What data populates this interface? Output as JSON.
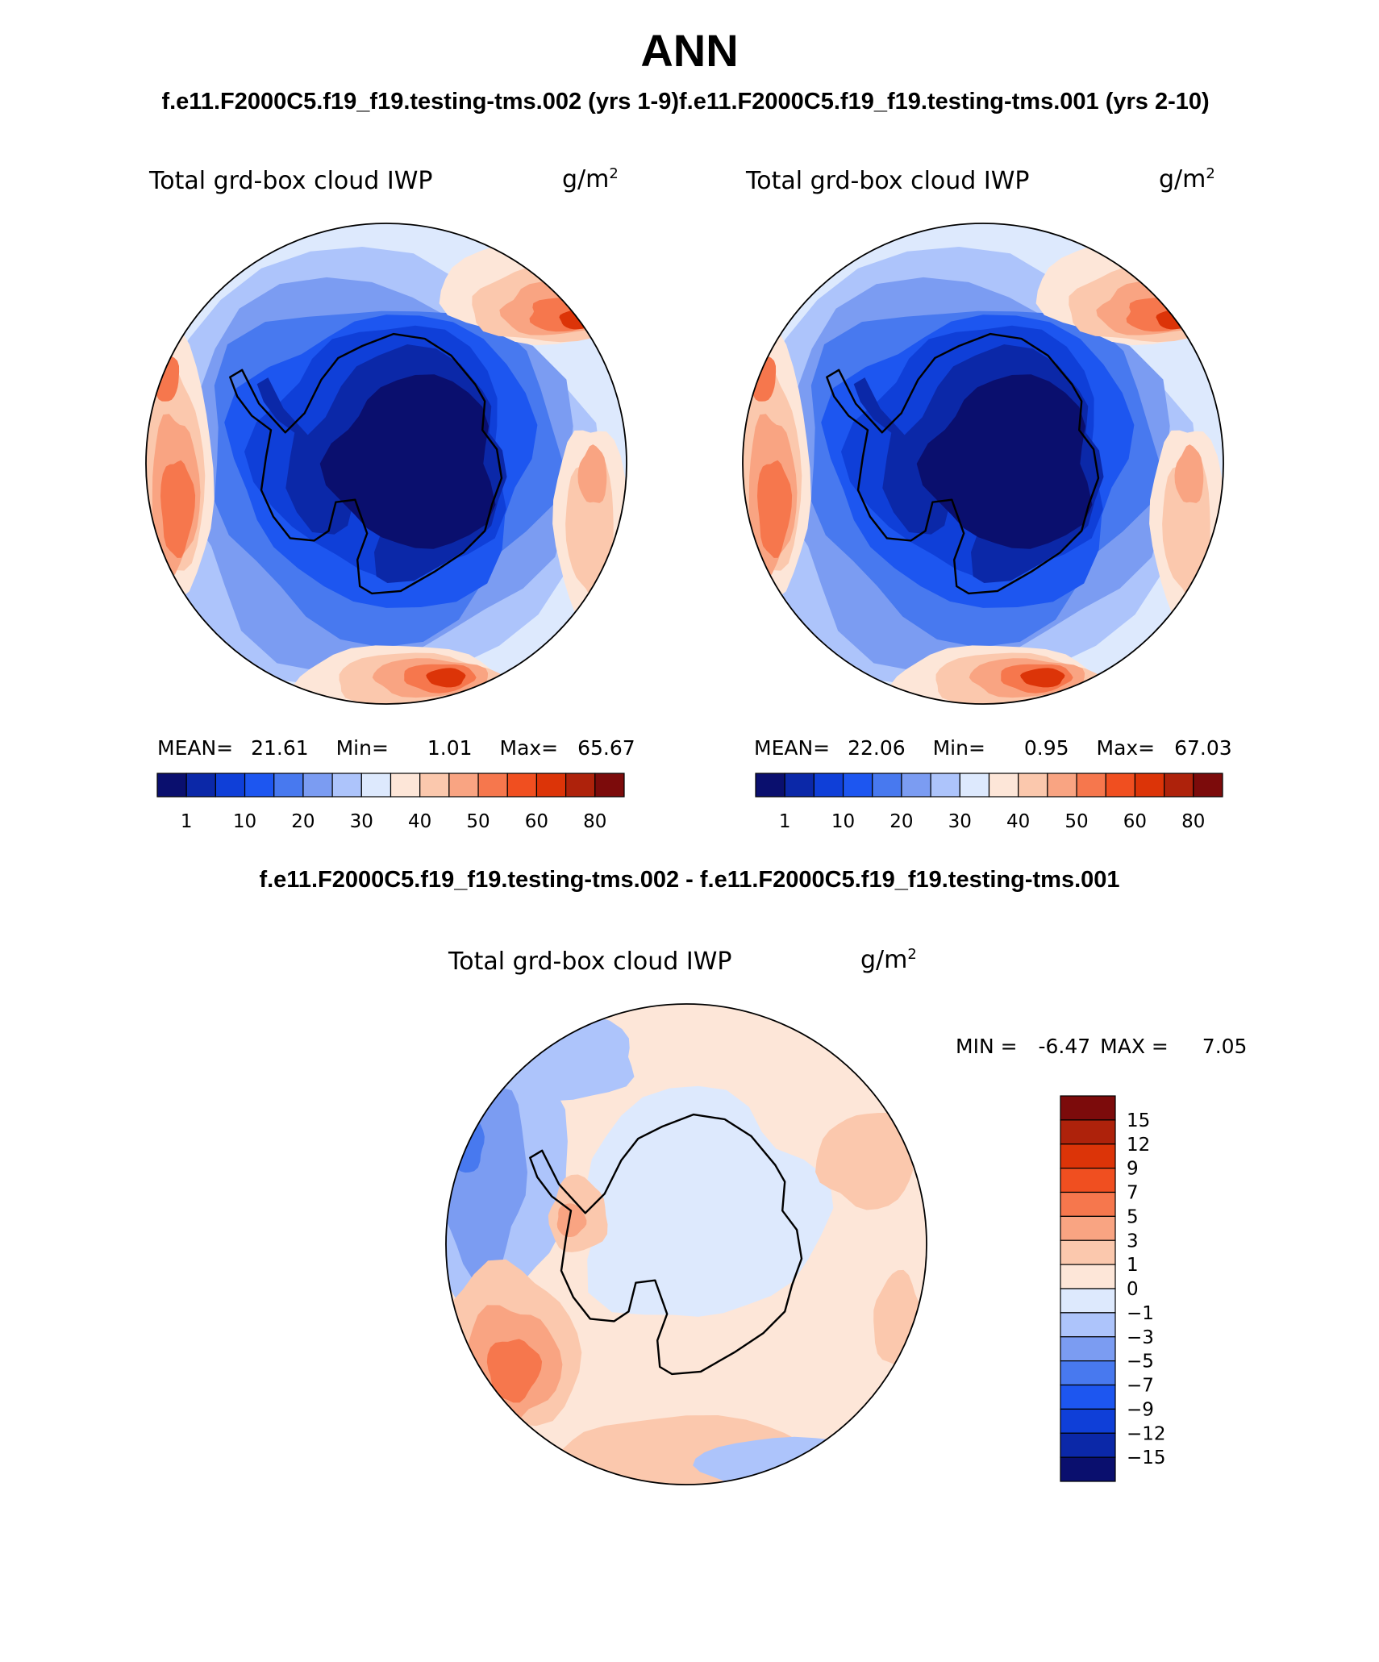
{
  "page": {
    "title": "ANN",
    "case_left_title": "f.e11.F2000C5.f19_f19.testing-tms.002 (yrs 1-9)",
    "case_right_title": "f.e11.F2000C5.f19_f19.testing-tms.001 (yrs 2-10)",
    "diff_title": "f.e11.F2000C5.f19_f19.testing-tms.002 - f.e11.F2000C5.f19_f19.testing-tms.001"
  },
  "colors": {
    "background": "#ffffff",
    "coastline": "#000000",
    "ocean_base_blue": "#a8c4ff",
    "ocean_base_red": "#f6a27e"
  },
  "chart_data": [
    {
      "type": "heatmap",
      "projection": "south-polar-stereographic",
      "variable": "Total grd-box cloud IWP",
      "units": "g/m²",
      "units_base": "g/m",
      "units_exp": "2",
      "stats": {
        "mean_label": "MEAN=",
        "mean": "21.61",
        "min_label": "Min=",
        "min": "1.01",
        "max_label": "Max=",
        "max": "65.67"
      },
      "colorbar": {
        "orientation": "horizontal",
        "levels": [
          "1",
          "10",
          "20",
          "30",
          "40",
          "50",
          "60",
          "80"
        ],
        "colors": [
          "#0a0f6e",
          "#0b28a8",
          "#0f3fd8",
          "#1d56f0",
          "#4879ef",
          "#7b9cf2",
          "#adc4fb",
          "#dde9fd",
          "#fde6d8",
          "#fbc8ad",
          "#f9a482",
          "#f6774d",
          "#f04f20",
          "#dc3408",
          "#ae220b",
          "#7c0b0b"
        ]
      },
      "regions": {
        "ocean_ring": "light-blue to white",
        "subpolar_maxima": "red near 60S",
        "antarctic_interior": "dark blue"
      }
    },
    {
      "type": "heatmap",
      "projection": "south-polar-stereographic",
      "variable": "Total grd-box cloud IWP",
      "units": "g/m²",
      "units_base": "g/m",
      "units_exp": "2",
      "stats": {
        "mean_label": "MEAN=",
        "mean": "22.06",
        "min_label": "Min=",
        "min": "0.95",
        "max_label": "Max=",
        "max": "67.03"
      },
      "colorbar": {
        "orientation": "horizontal",
        "levels": [
          "1",
          "10",
          "20",
          "30",
          "40",
          "50",
          "60",
          "80"
        ],
        "colors": [
          "#0a0f6e",
          "#0b28a8",
          "#0f3fd8",
          "#1d56f0",
          "#4879ef",
          "#7b9cf2",
          "#adc4fb",
          "#dde9fd",
          "#fde6d8",
          "#fbc8ad",
          "#f9a482",
          "#f6774d",
          "#f04f20",
          "#dc3408",
          "#ae220b",
          "#7c0b0b"
        ]
      }
    },
    {
      "type": "heatmap",
      "projection": "south-polar-stereographic",
      "variable": "Total grd-box cloud IWP",
      "units": "g/m²",
      "units_base": "g/m",
      "units_exp": "2",
      "stats": {
        "min_label": "MIN =",
        "min": "-6.47",
        "max_label": "MAX =",
        "max": "7.05"
      },
      "colorbar": {
        "orientation": "vertical",
        "levels": [
          "15",
          "12",
          "9",
          "7",
          "5",
          "3",
          "1",
          "0",
          "-1",
          "-3",
          "-5",
          "-7",
          "-9",
          "-12",
          "-15"
        ],
        "colors": [
          "#7c0b0b",
          "#ae220b",
          "#dc3408",
          "#f04f20",
          "#f6774d",
          "#f9a482",
          "#fbc8ad",
          "#fde6d8",
          "#dde9fd",
          "#adc4fb",
          "#7b9cf2",
          "#4879ef",
          "#1d56f0",
          "#0f3fd8",
          "#0b28a8",
          "#0a0f6e"
        ]
      }
    }
  ]
}
